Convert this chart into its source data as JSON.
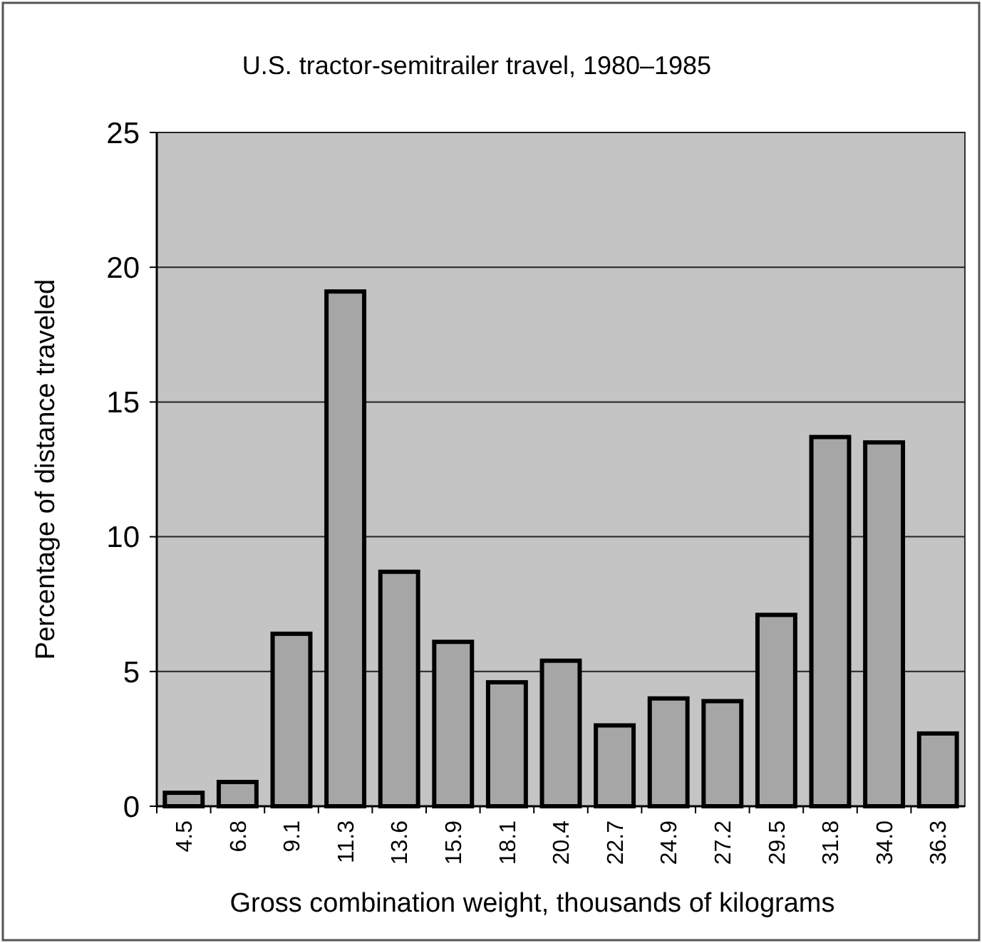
{
  "chart_data": {
    "type": "bar",
    "title": "U.S. tractor-semitrailer travel, 1980–1985",
    "xlabel": "Gross combination weight, thousands of kilograms",
    "ylabel": "Percentage of distance traveled",
    "categories": [
      "4.5",
      "6.8",
      "9.1",
      "11.3",
      "13.6",
      "15.9",
      "18.1",
      "20.4",
      "22.7",
      "24.9",
      "27.2",
      "29.5",
      "31.8",
      "34.0",
      "36.3"
    ],
    "values": [
      0.5,
      0.9,
      6.4,
      19.1,
      8.7,
      6.1,
      4.6,
      5.4,
      3.0,
      4.0,
      3.9,
      7.1,
      13.7,
      13.5,
      2.7
    ],
    "color": "#a6a6a6",
    "ylim": [
      0,
      25
    ],
    "yticks": [
      0,
      5,
      10,
      15,
      20,
      25
    ],
    "grid": "y"
  }
}
